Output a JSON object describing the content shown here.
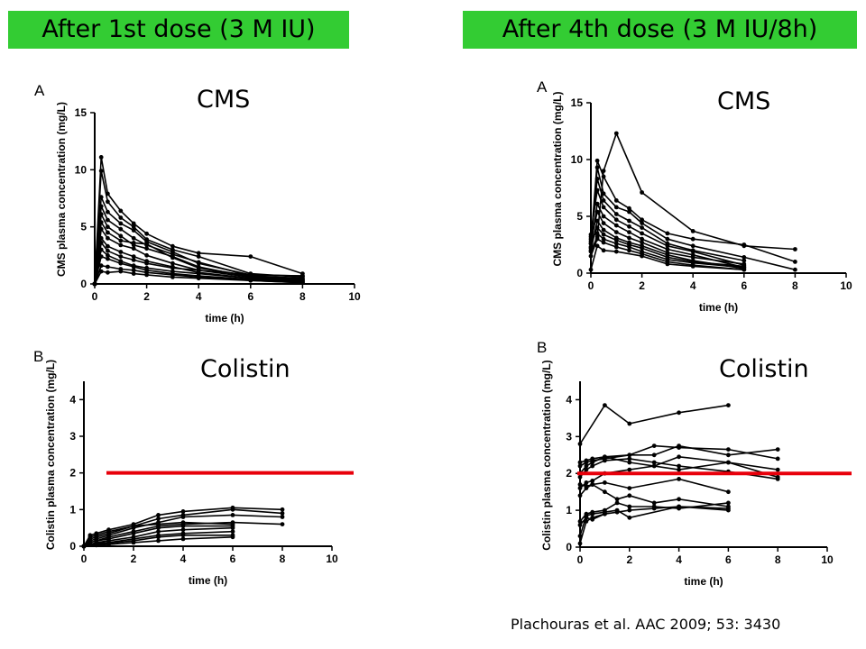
{
  "banners": {
    "left": "After 1st dose (3 M IU)",
    "right": "After 4th dose (3 M IU/8h)"
  },
  "citation": "Plachouras et al. AAC 2009; 53: 3430",
  "colors": {
    "banner": "#33cc33",
    "threshold": "#e8000b",
    "series": "#000000"
  },
  "chart_data": [
    {
      "id": "cms-dose1",
      "type": "line",
      "panel_letter": "A",
      "title": "CMS",
      "xlabel": "time (h)",
      "ylabel": "CMS plasma concentration (mg/L)",
      "xlim": [
        0,
        10
      ],
      "ylim": [
        0,
        15
      ],
      "xticks": [
        0,
        2,
        4,
        6,
        8,
        10
      ],
      "yticks": [
        0,
        5,
        10,
        15
      ],
      "grid": false,
      "series": [
        {
          "x": [
            0,
            0.25,
            0.5,
            1,
            1.5,
            2,
            3,
            4,
            6,
            8
          ],
          "y": [
            0,
            11.1,
            7.9,
            6.4,
            5.3,
            4.4,
            3.3,
            2.7,
            2.4,
            0.9
          ]
        },
        {
          "x": [
            0,
            0.25,
            0.5,
            1,
            1.5,
            2,
            3,
            4,
            6,
            8
          ],
          "y": [
            0,
            9.9,
            7.2,
            5.8,
            5.0,
            3.9,
            3.0,
            2.4,
            0.9,
            0.6
          ]
        },
        {
          "x": [
            0,
            0.25,
            0.5,
            1,
            1.5,
            2,
            3,
            4,
            6,
            8
          ],
          "y": [
            0,
            7.6,
            6.3,
            5.3,
            4.7,
            3.7,
            2.8,
            1.8,
            0.8,
            0.7
          ]
        },
        {
          "x": [
            0,
            0.25,
            0.5,
            1,
            1.5,
            2,
            3,
            4,
            6,
            8
          ],
          "y": [
            0,
            6.8,
            5.6,
            4.8,
            4.0,
            3.4,
            2.6,
            1.9,
            0.7,
            0.4
          ]
        },
        {
          "x": [
            0,
            0.25,
            0.5,
            1,
            1.5,
            2,
            3,
            4,
            6,
            8
          ],
          "y": [
            0,
            6.1,
            5.0,
            4.2,
            3.4,
            3.1,
            2.4,
            1.5,
            0.6,
            0.3
          ]
        },
        {
          "x": [
            0,
            0.25,
            0.5,
            1,
            1.5,
            2,
            3,
            4,
            6,
            8
          ],
          "y": [
            0,
            5.4,
            4.5,
            3.8,
            3.6,
            3.5,
            2.3,
            1.4,
            0.7,
            0.5
          ]
        },
        {
          "x": [
            0,
            0.25,
            0.5,
            1,
            1.5,
            2,
            3,
            4,
            6,
            8
          ],
          "y": [
            0,
            4.8,
            4.0,
            3.4,
            3.1,
            2.5,
            1.8,
            1.2,
            0.8,
            0.7
          ]
        },
        {
          "x": [
            0,
            0.25,
            0.5,
            1,
            1.5,
            2,
            3,
            4,
            6,
            8
          ],
          "y": [
            0,
            4.0,
            3.3,
            2.8,
            2.4,
            2.0,
            1.5,
            1.0,
            0.5,
            0.3
          ]
        },
        {
          "x": [
            0,
            0.25,
            0.5,
            1,
            1.5,
            2,
            3,
            4,
            6,
            8
          ],
          "y": [
            0,
            3.6,
            2.9,
            2.4,
            2.1,
            1.8,
            1.4,
            1.2,
            0.6,
            0.4
          ]
        },
        {
          "x": [
            0,
            0.25,
            0.5,
            1,
            1.5,
            2,
            3,
            4,
            6,
            8
          ],
          "y": [
            0,
            3.0,
            2.5,
            2.0,
            1.6,
            1.4,
            1.1,
            0.9,
            0.5,
            0.2
          ]
        },
        {
          "x": [
            0,
            0.25,
            0.5,
            1,
            1.5,
            2,
            3,
            4,
            6,
            8
          ],
          "y": [
            0,
            2.4,
            2.2,
            1.8,
            1.5,
            1.2,
            0.9,
            0.7,
            0.4,
            0.2
          ]
        },
        {
          "x": [
            0,
            0.25,
            0.5,
            1,
            1.5,
            2,
            3,
            4,
            6,
            8
          ],
          "y": [
            0,
            1.6,
            1.5,
            1.3,
            1.2,
            1.0,
            0.8,
            0.6,
            0.3,
            0.1
          ]
        },
        {
          "x": [
            0,
            0.25,
            0.5,
            1,
            1.5,
            2,
            3,
            4,
            6,
            8
          ],
          "y": [
            0,
            1.1,
            1.0,
            1.1,
            0.9,
            0.8,
            0.6,
            0.5,
            0.3,
            0.1
          ]
        }
      ]
    },
    {
      "id": "cms-dose4",
      "type": "line",
      "panel_letter": "A",
      "title": "CMS",
      "xlabel": "time (h)",
      "ylabel": "CMS plasma concentration (mg/L)",
      "xlim": [
        0,
        10
      ],
      "ylim": [
        0,
        15
      ],
      "xticks": [
        0,
        2,
        4,
        6,
        8,
        10
      ],
      "yticks": [
        0,
        5,
        10,
        15
      ],
      "grid": false,
      "series": [
        {
          "x": [
            0,
            0.25,
            0.5,
            1,
            2,
            4,
            6,
            8
          ],
          "y": [
            1.9,
            3.2,
            9.0,
            12.3,
            7.1,
            3.7,
            2.4,
            2.1
          ]
        },
        {
          "x": [
            0,
            0.25,
            0.5,
            1,
            1.5,
            2,
            3,
            4,
            6,
            8
          ],
          "y": [
            2.6,
            9.9,
            8.5,
            6.4,
            5.7,
            4.7,
            3.5,
            3.0,
            2.5,
            1.0
          ]
        },
        {
          "x": [
            0,
            0.25,
            0.5,
            1,
            1.5,
            2,
            3,
            4,
            6,
            8
          ],
          "y": [
            2.2,
            9.3,
            7.0,
            5.8,
            5.4,
            4.4,
            3.0,
            2.4,
            1.4,
            0.3
          ]
        },
        {
          "x": [
            0,
            0.25,
            0.5,
            1,
            1.5,
            2,
            3,
            4,
            6
          ],
          "y": [
            3.0,
            8.3,
            6.4,
            5.2,
            4.6,
            4.0,
            2.6,
            2.0,
            1.1
          ]
        },
        {
          "x": [
            0,
            0.25,
            0.5,
            1,
            1.5,
            2,
            3,
            4,
            6
          ],
          "y": [
            3.4,
            7.3,
            5.8,
            4.7,
            4.1,
            3.5,
            2.4,
            1.9,
            0.7
          ]
        },
        {
          "x": [
            0,
            0.25,
            0.5,
            1,
            1.5,
            2,
            3,
            4,
            6
          ],
          "y": [
            2.3,
            6.1,
            5.0,
            4.2,
            3.6,
            3.0,
            2.1,
            1.6,
            0.5
          ]
        },
        {
          "x": [
            0,
            0.25,
            0.5,
            1,
            1.5,
            2,
            3,
            4,
            6
          ],
          "y": [
            2.8,
            5.4,
            4.4,
            3.6,
            3.1,
            2.7,
            1.8,
            1.4,
            0.8
          ]
        },
        {
          "x": [
            0,
            0.25,
            0.5,
            1,
            1.5,
            2,
            3,
            4,
            6
          ],
          "y": [
            2.0,
            4.6,
            3.8,
            3.1,
            2.7,
            2.4,
            1.6,
            1.1,
            0.4
          ]
        },
        {
          "x": [
            0,
            0.25,
            0.5,
            1,
            1.5,
            2,
            3,
            4,
            6
          ],
          "y": [
            2.6,
            4.0,
            3.4,
            2.9,
            2.5,
            2.2,
            1.4,
            1.0,
            0.6
          ]
        },
        {
          "x": [
            0,
            0.25,
            0.5,
            1,
            1.5,
            2,
            3,
            4,
            6
          ],
          "y": [
            3.2,
            3.5,
            3.0,
            2.6,
            2.3,
            1.9,
            1.2,
            0.9,
            0.5
          ]
        },
        {
          "x": [
            0,
            0.25,
            0.5,
            1,
            1.5,
            2,
            3,
            4,
            6
          ],
          "y": [
            1.5,
            3.0,
            2.7,
            2.3,
            2.0,
            1.7,
            1.0,
            0.7,
            0.3
          ]
        },
        {
          "x": [
            0,
            0.25,
            0.5,
            1,
            2,
            3,
            4,
            6
          ],
          "y": [
            0.3,
            2.4,
            2.0,
            1.9,
            1.5,
            0.8,
            0.6,
            0.3
          ]
        }
      ]
    },
    {
      "id": "colistin-dose1",
      "type": "line",
      "panel_letter": "B",
      "title": "Colistin",
      "xlabel": "time (h)",
      "ylabel": "Colistin plasma concentration (mg/L)",
      "xlim": [
        0,
        10
      ],
      "ylim": [
        0,
        4.5
      ],
      "xticks": [
        0,
        2,
        4,
        6,
        8,
        10
      ],
      "yticks": [
        0,
        1,
        2,
        3,
        4
      ],
      "grid": false,
      "threshold_line": 2,
      "series": [
        {
          "x": [
            0,
            0.25,
            0.5,
            1,
            2,
            3,
            4,
            6,
            8
          ],
          "y": [
            0,
            0.3,
            0.35,
            0.45,
            0.6,
            0.85,
            0.95,
            1.05,
            1.0
          ]
        },
        {
          "x": [
            0,
            0.25,
            0.5,
            1,
            2,
            3,
            4,
            6,
            8
          ],
          "y": [
            0,
            0.2,
            0.25,
            0.35,
            0.55,
            0.75,
            0.85,
            1.0,
            0.9
          ]
        },
        {
          "x": [
            0,
            0.25,
            0.5,
            1,
            2,
            3,
            4,
            6,
            8
          ],
          "y": [
            0,
            0.15,
            0.2,
            0.3,
            0.5,
            0.65,
            0.8,
            0.85,
            0.8
          ]
        },
        {
          "x": [
            0,
            0.25,
            0.5,
            1,
            2,
            3,
            4,
            6,
            8
          ],
          "y": [
            0,
            0.1,
            0.15,
            0.25,
            0.4,
            0.55,
            0.6,
            0.65,
            0.6
          ]
        },
        {
          "x": [
            0,
            0.25,
            0.5,
            1,
            2,
            3,
            4,
            6
          ],
          "y": [
            0,
            0.25,
            0.3,
            0.4,
            0.55,
            0.6,
            0.65,
            0.6
          ]
        },
        {
          "x": [
            0,
            0.25,
            0.5,
            1,
            2,
            3,
            4,
            6
          ],
          "y": [
            0,
            0.1,
            0.15,
            0.2,
            0.35,
            0.5,
            0.55,
            0.55
          ]
        },
        {
          "x": [
            0,
            0.25,
            0.5,
            1,
            2,
            3,
            4,
            6
          ],
          "y": [
            0,
            0.05,
            0.1,
            0.15,
            0.25,
            0.4,
            0.45,
            0.5
          ]
        },
        {
          "x": [
            0,
            0.25,
            0.5,
            1,
            2,
            3,
            4,
            6
          ],
          "y": [
            0,
            0.05,
            0.08,
            0.1,
            0.2,
            0.3,
            0.35,
            0.4
          ]
        },
        {
          "x": [
            0,
            0.5,
            1,
            2,
            3,
            4,
            6
          ],
          "y": [
            0,
            0.05,
            0.08,
            0.15,
            0.25,
            0.3,
            0.3
          ]
        },
        {
          "x": [
            0,
            0.5,
            1,
            2,
            3,
            4,
            6
          ],
          "y": [
            0,
            0.03,
            0.05,
            0.1,
            0.15,
            0.2,
            0.25
          ]
        }
      ]
    },
    {
      "id": "colistin-dose4",
      "type": "line",
      "panel_letter": "B",
      "title": "Colistin",
      "xlabel": "time (h)",
      "ylabel": "Colistin plasma concentration (mg/L)",
      "xlim": [
        0,
        10
      ],
      "ylim": [
        0,
        4.5
      ],
      "xticks": [
        0,
        2,
        4,
        6,
        8,
        10
      ],
      "yticks": [
        0,
        1,
        2,
        3,
        4
      ],
      "grid": false,
      "threshold_line": 2,
      "series": [
        {
          "x": [
            0,
            1,
            2,
            4,
            6
          ],
          "y": [
            2.8,
            3.85,
            3.35,
            3.65,
            3.85
          ]
        },
        {
          "x": [
            0,
            0.25,
            0.5,
            1,
            2,
            3,
            4,
            6,
            8
          ],
          "y": [
            2.2,
            2.3,
            2.35,
            2.4,
            2.5,
            2.75,
            2.7,
            2.65,
            2.4
          ]
        },
        {
          "x": [
            0,
            0.25,
            0.5,
            1,
            2,
            3,
            4,
            6,
            8
          ],
          "y": [
            2.0,
            2.2,
            2.3,
            2.45,
            2.5,
            2.5,
            2.75,
            2.5,
            2.65
          ]
        },
        {
          "x": [
            0,
            0.25,
            0.5,
            1,
            2,
            3,
            4,
            6,
            8
          ],
          "y": [
            1.9,
            2.1,
            2.2,
            2.35,
            2.4,
            2.3,
            2.2,
            2.05,
            1.85
          ]
        },
        {
          "x": [
            0,
            0.25,
            0.5,
            1,
            2,
            4,
            6,
            8
          ],
          "y": [
            2.3,
            2.35,
            2.4,
            2.45,
            2.3,
            2.1,
            2.3,
            2.1
          ]
        },
        {
          "x": [
            0,
            0.25,
            0.5,
            1,
            2,
            3,
            4,
            6,
            8
          ],
          "y": [
            1.6,
            1.75,
            1.8,
            2.0,
            2.1,
            2.2,
            2.45,
            2.3,
            1.9
          ]
        },
        {
          "x": [
            0,
            0.25,
            0.5,
            1,
            2,
            4,
            6
          ],
          "y": [
            1.4,
            1.6,
            1.7,
            1.75,
            1.6,
            1.85,
            1.5
          ]
        },
        {
          "x": [
            0,
            0.25,
            0.5,
            1,
            1.5,
            2,
            3,
            4,
            6
          ],
          "y": [
            1.7,
            1.65,
            1.7,
            1.5,
            1.3,
            1.4,
            1.2,
            1.3,
            1.1
          ]
        },
        {
          "x": [
            0,
            0.25,
            0.5,
            1,
            1.5,
            2,
            3,
            4,
            6
          ],
          "y": [
            0.7,
            0.9,
            0.95,
            1.0,
            1.2,
            1.1,
            1.1,
            1.05,
            1.2
          ]
        },
        {
          "x": [
            0,
            0.25,
            0.5,
            1,
            1.5,
            2,
            4,
            6
          ],
          "y": [
            0.3,
            0.85,
            0.9,
            0.95,
            1.0,
            0.8,
            1.1,
            1.05
          ]
        },
        {
          "x": [
            0,
            0.25,
            0.5,
            1,
            1.5,
            2,
            3,
            4,
            6
          ],
          "y": [
            0.6,
            0.8,
            0.75,
            0.9,
            0.95,
            1.0,
            1.05,
            1.1,
            1.0
          ]
        },
        {
          "x": [
            0,
            0.25,
            0.5,
            1
          ],
          "y": [
            0.1,
            0.7,
            0.8,
            0.9
          ]
        }
      ]
    }
  ]
}
